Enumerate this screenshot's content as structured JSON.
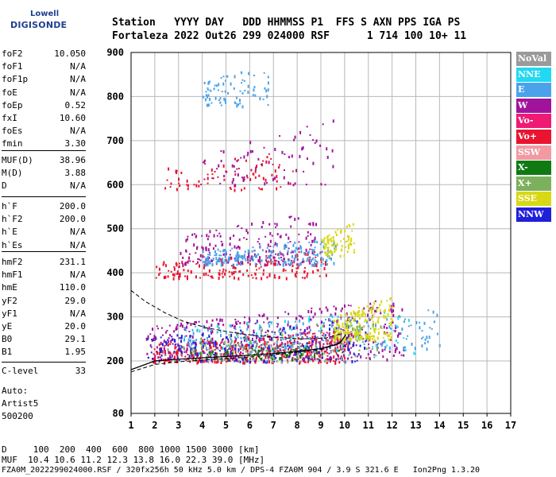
{
  "logo": {
    "line1": "Lowell",
    "line2": "DIGISONDE"
  },
  "header": {
    "row1": "Station   YYYY DAY   DDD HHMMSS P1  FFS S AXN PPS IGA PS",
    "row2": "Fortaleza 2022 Out26 299 024000 RSF      1 714 100 10+ 11"
  },
  "params": {
    "group1": [
      {
        "k": "foF2",
        "v": "10.050"
      },
      {
        "k": "foF1",
        "v": "N/A"
      },
      {
        "k": "foF1p",
        "v": "N/A"
      },
      {
        "k": "foE",
        "v": "N/A"
      },
      {
        "k": "foEp",
        "v": "0.52"
      },
      {
        "k": "fxI",
        "v": "10.60"
      },
      {
        "k": "foEs",
        "v": "N/A"
      },
      {
        "k": "fmin",
        "v": "3.30"
      }
    ],
    "group2": [
      {
        "k": "MUF(D)",
        "v": "38.96"
      },
      {
        "k": "M(D)",
        "v": "3.88"
      },
      {
        "k": "D",
        "v": "N/A"
      }
    ],
    "group3": [
      {
        "k": "h`F",
        "v": "200.0"
      },
      {
        "k": "h`F2",
        "v": "200.0"
      },
      {
        "k": "h`E",
        "v": "N/A"
      },
      {
        "k": "h`Es",
        "v": "N/A"
      }
    ],
    "group4": [
      {
        "k": "hmF2",
        "v": "231.1"
      },
      {
        "k": "hmF1",
        "v": "N/A"
      },
      {
        "k": "hmE",
        "v": "110.0"
      },
      {
        "k": "yF2",
        "v": "29.0"
      },
      {
        "k": "yF1",
        "v": "N/A"
      },
      {
        "k": "yE",
        "v": "20.0"
      },
      {
        "k": "B0",
        "v": "29.1"
      },
      {
        "k": "B1",
        "v": "1.95"
      }
    ],
    "group5": [
      {
        "k": "C-level",
        "v": "33"
      }
    ]
  },
  "auto": {
    "line1": "Auto:",
    "line2": "Artist5",
    "line3": "500200"
  },
  "footer": {
    "d_row": "D     100  200  400  600  800 1000 1500 3000 [km]",
    "muf_row": "MUF  10.4 10.6 11.2 12.3 13.8 16.0 22.3 39.0 [MHz]",
    "info_row": "FZA0M_2022299024000.RSF / 320fx256h 50 kHz 5.0 km / DPS-4 FZA0M 904 / 3.9 S 321.6 E   Ion2Png 1.3.20"
  },
  "legend": [
    {
      "label": "NoVal",
      "color": "#9a9a9a"
    },
    {
      "label": "NNE",
      "color": "#22d8f2"
    },
    {
      "label": "E",
      "color": "#4aa3ea"
    },
    {
      "label": "W",
      "color": "#a0149c"
    },
    {
      "label": "Vo-",
      "color": "#ee1a74"
    },
    {
      "label": "Vo+",
      "color": "#ea1330"
    },
    {
      "label": "SSW",
      "color": "#f29aa2"
    },
    {
      "label": "X-",
      "color": "#0f7a12"
    },
    {
      "label": "X+",
      "color": "#7cb05c"
    },
    {
      "label": "SSE",
      "color": "#d8d814"
    },
    {
      "label": "NNW",
      "color": "#2020d8"
    }
  ],
  "chart_data": {
    "type": "scatter",
    "title": "",
    "xlabel": "",
    "ylabel": "",
    "x_range": [
      1,
      17
    ],
    "y_range": [
      80,
      900
    ],
    "x_ticks": [
      "1",
      "2",
      "3",
      "4",
      "5",
      "6",
      "7",
      "8",
      "9",
      "10",
      "11",
      "12",
      "13",
      "14",
      "15",
      "16",
      "17"
    ],
    "y_ticks": [
      "80",
      "200",
      "300",
      "400",
      "500",
      "600",
      "700",
      "800",
      "900"
    ],
    "y_scale": "stretched (80-200 compressed)",
    "grid": true,
    "series": [
      {
        "name": "Vo+",
        "color": "#ea1330",
        "regions": [
          {
            "x": [
              1.9,
              10.2
            ],
            "y": [
              198,
              275
            ],
            "density": "high"
          },
          {
            "x": [
              2.0,
              9.2
            ],
            "y": [
              390,
              455
            ],
            "density": "medium"
          },
          {
            "x": [
              2.4,
              7.8
            ],
            "y": [
              590,
              680
            ],
            "density": "low"
          }
        ]
      },
      {
        "name": "W",
        "color": "#a0149c",
        "regions": [
          {
            "x": [
              1.6,
              12.5
            ],
            "y": [
              205,
              345
            ],
            "density": "high"
          },
          {
            "x": [
              3.0,
              8.8
            ],
            "y": [
              420,
              540
            ],
            "density": "medium"
          },
          {
            "x": [
              4.0,
              9.5
            ],
            "y": [
              600,
              760
            ],
            "density": "low"
          }
        ]
      },
      {
        "name": "E",
        "color": "#4aa3ea",
        "regions": [
          {
            "x": [
              3.2,
              14.0
            ],
            "y": [
              230,
              320
            ],
            "density": "medium"
          },
          {
            "x": [
              4.0,
              9.6
            ],
            "y": [
              420,
              480
            ],
            "density": "medium"
          },
          {
            "x": [
              4.0,
              6.8
            ],
            "y": [
              780,
              880
            ],
            "density": "low"
          }
        ]
      },
      {
        "name": "NNE",
        "color": "#22d8f2",
        "regions": [
          {
            "x": [
              3.0,
              13.0
            ],
            "y": [
              210,
              330
            ],
            "density": "low"
          }
        ]
      },
      {
        "name": "NNW",
        "color": "#2020d8",
        "regions": [
          {
            "x": [
              1.6,
              11.0
            ],
            "y": [
              200,
              300
            ],
            "density": "medium"
          }
        ]
      },
      {
        "name": "SSE",
        "color": "#d8d814",
        "regions": [
          {
            "x": [
              9.5,
              12.0
            ],
            "y": [
              250,
              350
            ],
            "density": "medium"
          },
          {
            "x": [
              9.0,
              10.4
            ],
            "y": [
              440,
              520
            ],
            "density": "low"
          }
        ]
      },
      {
        "name": "X-",
        "color": "#0f7a12",
        "regions": [
          {
            "x": [
              3.5,
              10.0
            ],
            "y": [
              205,
              240
            ],
            "density": "low"
          }
        ]
      },
      {
        "name": "X+",
        "color": "#7cb05c",
        "regions": [
          {
            "x": [
              3.5,
              11.5
            ],
            "y": [
              210,
              300
            ],
            "density": "low"
          }
        ]
      },
      {
        "name": "NoVal",
        "color": "#9a9a9a",
        "regions": [
          {
            "x": [
              2.0,
              10.0
            ],
            "y": [
              200,
              260
            ],
            "density": "low"
          }
        ]
      }
    ],
    "profile_curve": {
      "style": "solid",
      "x": [
        1.0,
        2.0,
        3.0,
        4.0,
        5.0,
        6.0,
        7.0,
        8.0,
        9.0,
        9.8,
        10.05
      ],
      "y": [
        180,
        200,
        204,
        207,
        210,
        213,
        217,
        222,
        228,
        240,
        260
      ]
    },
    "profile_bounds": [
      {
        "style": "dashed",
        "x": [
          1.0,
          1.6,
          2.4,
          3.2,
          4.2,
          5.2,
          6.2,
          7.2,
          8.2,
          9.2,
          9.9
        ],
        "y": [
          360,
          335,
          310,
          290,
          275,
          265,
          258,
          253,
          250,
          252,
          262
        ]
      },
      {
        "style": "dashed",
        "x": [
          1.0,
          2.0,
          3.0,
          4.0,
          5.0,
          6.0,
          7.0,
          8.0,
          9.0,
          9.7,
          10.05
        ],
        "y": [
          175,
          192,
          198,
          202,
          205,
          209,
          214,
          220,
          226,
          238,
          258
        ]
      }
    ]
  }
}
